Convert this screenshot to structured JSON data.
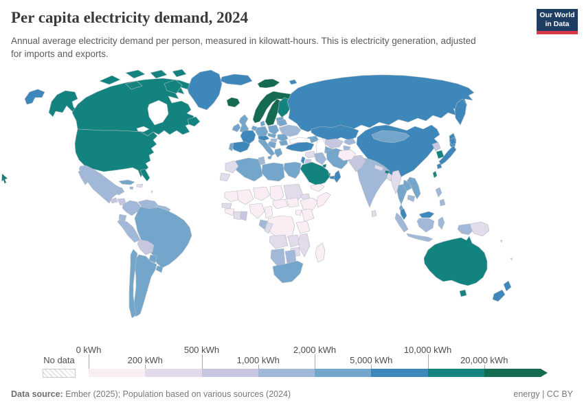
{
  "header": {
    "title": "Per capita electricity demand, 2024",
    "subtitle": "Annual average electricity demand per person, measured in kilowatt-hours. This is electricity generation, adjusted for imports and exports.",
    "logo": {
      "line1": "Our World",
      "line2": "in Data",
      "bg_color": "#1d3d63",
      "accent_color": "#d93a46"
    }
  },
  "chart_data": {
    "type": "choropleth",
    "title": "Per capita electricity demand, 2024",
    "unit": "kWh",
    "legend": {
      "no_data_label": "No data",
      "bin_labels": [
        "0 kWh",
        "200 kWh",
        "500 kWh",
        "1,000 kWh",
        "2,000 kWh",
        "5,000 kWh",
        "10,000 kWh",
        "20,000 kWh"
      ],
      "bin_edges_kwh": [
        0,
        200,
        500,
        1000,
        2000,
        5000,
        10000,
        20000
      ],
      "colors": [
        "#faeef4",
        "#e1dbeb",
        "#c7c6e0",
        "#a2b8d8",
        "#74a6cb",
        "#3d87ba",
        "#12837f",
        "#146b51"
      ],
      "border_color": "#b3bcc1"
    },
    "regions": {
      "chukotka_west": 5,
      "canada": 6,
      "usa": 6,
      "greenland": 5,
      "mexico": 3,
      "guatemala": 2,
      "honduras": 2,
      "panama": 4,
      "cuba": 4,
      "hispaniola": 1,
      "jamaica": 3,
      "antilles": 1,
      "colombia": 3,
      "venezuela": 3,
      "guyanas": 3,
      "ecuador": 3,
      "peru": 3,
      "brazil": 4,
      "bolivia": 2,
      "paraguay": 4,
      "uruguay": 4,
      "argentina": 4,
      "chile": 4,
      "iceland": 7,
      "ireland": 4,
      "uk": 4,
      "norway": 7,
      "sweden": 7,
      "finland": 6,
      "denmark": 4,
      "baltics": 4,
      "germany": 4,
      "benelux": 4,
      "france": 5,
      "spain": 5,
      "portugal": 4,
      "italy": 4,
      "alpine": 5,
      "poland": 4,
      "czechia": 4,
      "hungary": 3,
      "balkans": 4,
      "greece": 4,
      "romania": 4,
      "bulgaria": 4,
      "ukraine": 3,
      "belarus": 4,
      "russia": 5,
      "svalbard": 7,
      "kazakhstan": 5,
      "uzbekistan": 2,
      "turkmenistan": 4,
      "kyrgyzstan": 3,
      "tajikistan": 3,
      "caucasus": 4,
      "turkey": 5,
      "syria": 1,
      "israel": 5,
      "jordan": 2,
      "iraq": 3,
      "iran": 4,
      "kuwait": 6,
      "saudi_arabia": 6,
      "qatar": 6,
      "uae": 5,
      "oman": 5,
      "yemen": 0,
      "egypt": 4,
      "libya": 4,
      "tunisia": 3,
      "algeria": 4,
      "morocco": 1,
      "western_sahara": 1,
      "mauritania": 0,
      "mali": 0,
      "niger": 0,
      "chad": 0,
      "sudan": 1,
      "senegal": 1,
      "guinea": 0,
      "ivory_coast": 1,
      "ghana": 2,
      "nigeria": 0,
      "cameroon": 0,
      "car": 0,
      "south_sudan": 0,
      "eritrea": 1,
      "ethiopia": 0,
      "somalia": 0,
      "kenya": 0,
      "uganda": 0,
      "drc": 0,
      "gabon": 3,
      "congo": 1,
      "tanzania": 0,
      "angola": 1,
      "zambia": 1,
      "mozambique": 1,
      "zimbabwe": 1,
      "namibia": 3,
      "botswana": 3,
      "south_africa": 4,
      "madagascar": 0,
      "china": 5,
      "mongolia": 4,
      "north_korea": 2,
      "south_korea": 6,
      "japan": 5,
      "taiwan": 6,
      "india": 3,
      "pakistan": 2,
      "afghanistan": 0,
      "nepal": 1,
      "bhutan": 6,
      "bangladesh": 1,
      "sri_lanka": 1,
      "myanmar": 1,
      "thailand": 4,
      "laos": 4,
      "vietnam": 4,
      "cambodia": 3,
      "malaysia": 5,
      "indonesia": 3,
      "philippines": 3,
      "png": 1,
      "pacific": 1,
      "australia": 6,
      "new_zealand": 5
    }
  },
  "footer": {
    "source_label": "Data source:",
    "source_text": " Ember (2025); Population based on various sources (2024)",
    "right_text": "energy | CC BY"
  }
}
